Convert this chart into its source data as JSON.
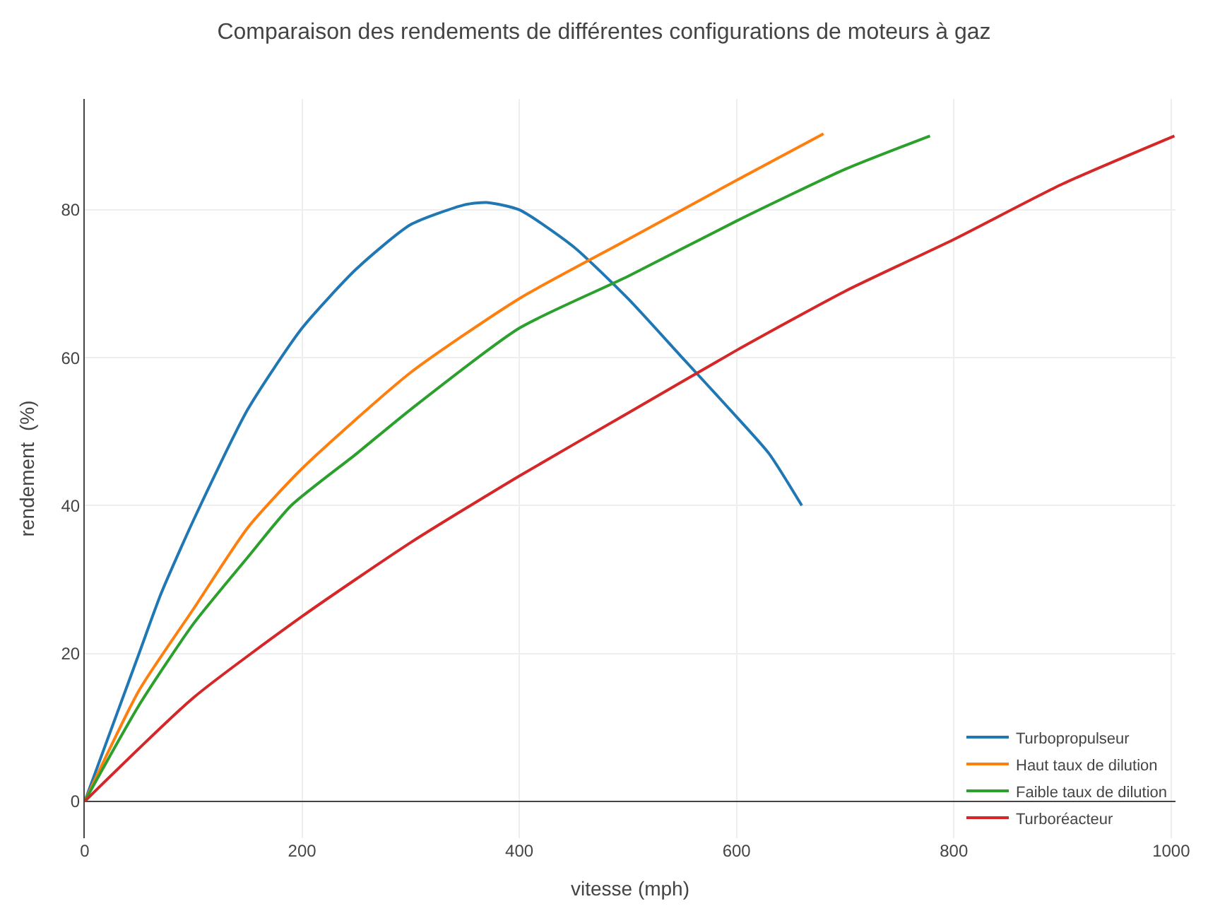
{
  "chart_data": {
    "type": "line",
    "title": "Comparaison des rendements de différentes configurations de moteurs à gaz",
    "xlabel": "vitesse (mph)",
    "ylabel": "rendement  (%)",
    "xlim": [
      0,
      1004
    ],
    "xticks": [
      0,
      200,
      400,
      600,
      800,
      1000
    ],
    "ylim": [
      -5,
      95
    ],
    "yticks": [
      0,
      20,
      40,
      60,
      80
    ],
    "grid": true,
    "legend": "bottom right",
    "marker": "none",
    "line_style": "solid",
    "series": [
      {
        "name": "Turbopropulseur",
        "color": "#1f77b4",
        "x": [
          0,
          50,
          70,
          100,
          150,
          200,
          250,
          300,
          350,
          370,
          400,
          450,
          500,
          550,
          600,
          630,
          660
        ],
        "values": [
          0,
          20,
          28,
          38,
          53,
          64,
          72,
          78,
          80.7,
          81,
          80,
          75,
          68,
          60,
          52,
          47,
          40
        ]
      },
      {
        "name": "Haut taux de dilution",
        "color": "#ff7f0e",
        "x": [
          0,
          50,
          100,
          150,
          200,
          300,
          400,
          500,
          600,
          680
        ],
        "values": [
          0,
          15,
          26,
          37,
          45,
          58,
          68,
          76,
          84,
          90.3
        ]
      },
      {
        "name": "Faible taux de dilution",
        "color": "#2ca02c",
        "x": [
          0,
          50,
          100,
          150,
          190,
          250,
          300,
          400,
          500,
          600,
          700,
          778
        ],
        "values": [
          0,
          13,
          24,
          33,
          40,
          47,
          53,
          64,
          71,
          78.5,
          85.5,
          90
        ]
      },
      {
        "name": "Turboréacteur",
        "color": "#d62728",
        "x": [
          0,
          100,
          200,
          300,
          400,
          500,
          600,
          700,
          800,
          900,
          1003
        ],
        "values": [
          0,
          14,
          25,
          35,
          44,
          52.5,
          61,
          69,
          76,
          83.5,
          90
        ]
      }
    ]
  }
}
